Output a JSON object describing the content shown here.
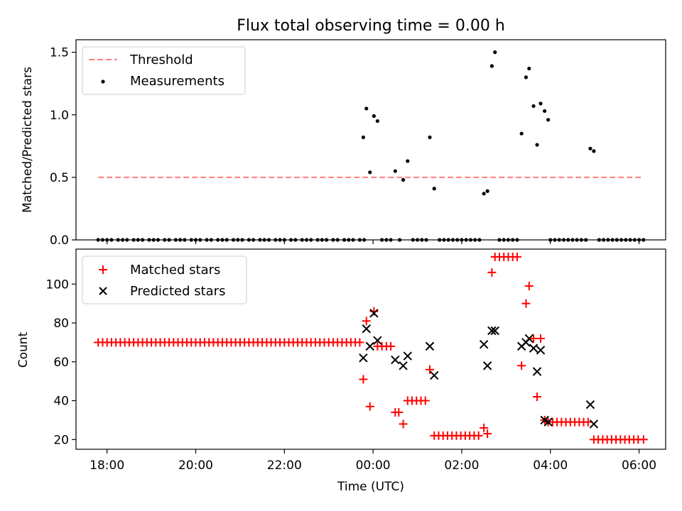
{
  "chart_data": [
    {
      "type": "scatter",
      "panel": "top",
      "title": "Flux total observing time = 0.00 h",
      "xlabel": "",
      "ylabel": "Matched/Predicted stars",
      "xlim": [
        17.3,
        30.6
      ],
      "ylim": [
        0,
        1.6
      ],
      "yticks": [
        0,
        0.5,
        1.0,
        1.5
      ],
      "ytick_labels": [
        "0.0",
        "0.5",
        "1.0",
        "1.5"
      ],
      "xticks": [
        18,
        20,
        22,
        24,
        26,
        28,
        30
      ],
      "legend_position": "top-left",
      "legend": [
        "Threshold",
        "Measurements"
      ],
      "threshold": {
        "name": "Threshold",
        "value": 0.5,
        "x_start": 17.8,
        "x_end": 30.1,
        "color": "#ff7f7f"
      },
      "measurements": {
        "name": "Measurements",
        "color": "#000000",
        "points": [
          [
            17.8,
            0
          ],
          [
            17.9,
            0
          ],
          [
            18.0,
            0
          ],
          [
            18.1,
            0
          ],
          [
            18.25,
            0
          ],
          [
            18.35,
            0
          ],
          [
            18.45,
            0
          ],
          [
            18.6,
            0
          ],
          [
            18.7,
            0
          ],
          [
            18.8,
            0
          ],
          [
            18.95,
            0
          ],
          [
            19.05,
            0
          ],
          [
            19.15,
            0
          ],
          [
            19.3,
            0
          ],
          [
            19.4,
            0
          ],
          [
            19.55,
            0
          ],
          [
            19.65,
            0
          ],
          [
            19.75,
            0
          ],
          [
            19.9,
            0
          ],
          [
            20.0,
            0
          ],
          [
            20.1,
            0
          ],
          [
            20.25,
            0
          ],
          [
            20.35,
            0
          ],
          [
            20.5,
            0
          ],
          [
            20.6,
            0
          ],
          [
            20.7,
            0
          ],
          [
            20.85,
            0
          ],
          [
            20.95,
            0
          ],
          [
            21.05,
            0
          ],
          [
            21.2,
            0
          ],
          [
            21.3,
            0
          ],
          [
            21.45,
            0
          ],
          [
            21.55,
            0
          ],
          [
            21.65,
            0
          ],
          [
            21.8,
            0
          ],
          [
            21.9,
            0
          ],
          [
            22.0,
            0
          ],
          [
            22.15,
            0
          ],
          [
            22.25,
            0
          ],
          [
            22.4,
            0
          ],
          [
            22.5,
            0
          ],
          [
            22.6,
            0
          ],
          [
            22.75,
            0
          ],
          [
            22.85,
            0
          ],
          [
            22.95,
            0
          ],
          [
            23.1,
            0
          ],
          [
            23.2,
            0
          ],
          [
            23.35,
            0
          ],
          [
            23.45,
            0
          ],
          [
            23.55,
            0
          ],
          [
            23.7,
            0
          ],
          [
            23.8,
            0
          ],
          [
            23.78,
            0.82
          ],
          [
            23.85,
            1.05
          ],
          [
            23.93,
            0.54
          ],
          [
            24.02,
            0.99
          ],
          [
            24.1,
            0.95
          ],
          [
            24.5,
            0.55
          ],
          [
            24.68,
            0.48
          ],
          [
            24.78,
            0.63
          ],
          [
            25.28,
            0.82
          ],
          [
            25.38,
            0.41
          ],
          [
            26.5,
            0.37
          ],
          [
            26.58,
            0.39
          ],
          [
            26.68,
            1.39
          ],
          [
            26.75,
            1.5
          ],
          [
            27.35,
            0.85
          ],
          [
            27.45,
            1.3
          ],
          [
            27.52,
            1.37
          ],
          [
            27.62,
            1.07
          ],
          [
            27.7,
            0.76
          ],
          [
            27.78,
            1.09
          ],
          [
            27.87,
            1.03
          ],
          [
            27.95,
            0.96
          ],
          [
            28.9,
            0.73
          ],
          [
            28.98,
            0.71
          ],
          [
            24.2,
            0
          ],
          [
            24.3,
            0
          ],
          [
            24.4,
            0
          ],
          [
            24.6,
            0
          ],
          [
            24.9,
            0
          ],
          [
            25.0,
            0
          ],
          [
            25.1,
            0
          ],
          [
            25.2,
            0
          ],
          [
            25.5,
            0
          ],
          [
            25.6,
            0
          ],
          [
            25.7,
            0
          ],
          [
            25.8,
            0
          ],
          [
            25.9,
            0
          ],
          [
            26.0,
            0
          ],
          [
            26.1,
            0
          ],
          [
            26.2,
            0
          ],
          [
            26.3,
            0
          ],
          [
            26.4,
            0
          ],
          [
            26.85,
            0
          ],
          [
            26.95,
            0
          ],
          [
            27.05,
            0
          ],
          [
            27.15,
            0
          ],
          [
            27.25,
            0
          ],
          [
            28.0,
            0
          ],
          [
            28.1,
            0
          ],
          [
            28.2,
            0
          ],
          [
            28.3,
            0
          ],
          [
            28.4,
            0
          ],
          [
            28.5,
            0
          ],
          [
            28.6,
            0
          ],
          [
            28.7,
            0
          ],
          [
            28.8,
            0
          ],
          [
            29.1,
            0
          ],
          [
            29.2,
            0
          ],
          [
            29.3,
            0
          ],
          [
            29.4,
            0
          ],
          [
            29.5,
            0
          ],
          [
            29.6,
            0
          ],
          [
            29.7,
            0
          ],
          [
            29.8,
            0
          ],
          [
            29.9,
            0
          ],
          [
            30.0,
            0
          ],
          [
            30.1,
            0
          ]
        ]
      }
    },
    {
      "type": "scatter",
      "panel": "bottom",
      "title": "",
      "xlabel": "Time (UTC)",
      "ylabel": "Count",
      "xlim": [
        17.3,
        30.6
      ],
      "ylim": [
        15,
        118
      ],
      "yticks": [
        20,
        40,
        60,
        80,
        100
      ],
      "ytick_labels": [
        "20",
        "40",
        "60",
        "80",
        "100"
      ],
      "xticks": [
        18,
        20,
        22,
        24,
        26,
        28,
        30
      ],
      "xtick_labels": [
        "18:00",
        "20:00",
        "22:00",
        "00:00",
        "02:00",
        "04:00",
        "06:00"
      ],
      "legend_position": "top-left",
      "legend": [
        "Matched stars",
        "Predicted stars"
      ],
      "series": [
        {
          "name": "Matched stars",
          "marker": "plus",
          "color": "#ff0000",
          "segments": [
            {
              "x_start": 17.8,
              "x_end": 23.75,
              "step": 0.1,
              "y": 70
            }
          ],
          "points": [
            [
              23.78,
              51
            ],
            [
              23.85,
              81
            ],
            [
              23.93,
              37
            ],
            [
              24.02,
              86
            ],
            [
              24.1,
              68
            ],
            [
              24.2,
              68
            ],
            [
              24.3,
              68
            ],
            [
              24.4,
              68
            ],
            [
              24.5,
              34
            ],
            [
              24.58,
              34
            ],
            [
              24.68,
              28
            ],
            [
              24.78,
              40
            ],
            [
              24.88,
              40
            ],
            [
              24.98,
              40
            ],
            [
              25.08,
              40
            ],
            [
              25.18,
              40
            ],
            [
              25.28,
              56
            ],
            [
              25.38,
              22
            ],
            [
              25.48,
              22
            ],
            [
              25.58,
              22
            ],
            [
              25.68,
              22
            ],
            [
              25.78,
              22
            ],
            [
              25.88,
              22
            ],
            [
              25.98,
              22
            ],
            [
              26.08,
              22
            ],
            [
              26.18,
              22
            ],
            [
              26.28,
              22
            ],
            [
              26.38,
              22
            ],
            [
              26.5,
              26
            ],
            [
              26.58,
              23
            ],
            [
              26.68,
              106
            ],
            [
              26.75,
              114
            ],
            [
              26.85,
              114
            ],
            [
              26.95,
              114
            ],
            [
              27.05,
              114
            ],
            [
              27.15,
              114
            ],
            [
              27.25,
              114
            ],
            [
              27.35,
              58
            ],
            [
              27.45,
              90
            ],
            [
              27.52,
              99
            ],
            [
              27.62,
              72
            ],
            [
              27.7,
              42
            ],
            [
              27.78,
              72
            ],
            [
              27.87,
              30
            ],
            [
              27.95,
              29
            ],
            [
              28.05,
              29
            ],
            [
              28.15,
              29
            ],
            [
              28.25,
              29
            ],
            [
              28.35,
              29
            ],
            [
              28.45,
              29
            ],
            [
              28.55,
              29
            ],
            [
              28.65,
              29
            ],
            [
              28.75,
              29
            ],
            [
              28.85,
              29
            ],
            [
              28.98,
              20
            ],
            [
              29.08,
              20
            ],
            [
              29.18,
              20
            ],
            [
              29.28,
              20
            ],
            [
              29.38,
              20
            ],
            [
              29.48,
              20
            ],
            [
              29.58,
              20
            ],
            [
              29.68,
              20
            ],
            [
              29.78,
              20
            ],
            [
              29.88,
              20
            ],
            [
              29.98,
              20
            ],
            [
              30.1,
              20
            ]
          ]
        },
        {
          "name": "Predicted stars",
          "marker": "x",
          "color": "#000000",
          "points": [
            [
              23.78,
              62
            ],
            [
              23.85,
              77
            ],
            [
              23.93,
              68
            ],
            [
              24.02,
              85
            ],
            [
              24.1,
              71
            ],
            [
              24.5,
              61
            ],
            [
              24.68,
              58
            ],
            [
              24.78,
              63
            ],
            [
              25.28,
              68
            ],
            [
              25.38,
              53
            ],
            [
              26.5,
              69
            ],
            [
              26.58,
              58
            ],
            [
              26.68,
              76
            ],
            [
              26.75,
              76
            ],
            [
              27.35,
              68
            ],
            [
              27.45,
              70
            ],
            [
              27.52,
              72
            ],
            [
              27.62,
              67
            ],
            [
              27.7,
              55
            ],
            [
              27.78,
              66
            ],
            [
              27.87,
              30
            ],
            [
              27.95,
              29
            ],
            [
              28.9,
              38
            ],
            [
              28.98,
              28
            ]
          ]
        }
      ]
    }
  ]
}
